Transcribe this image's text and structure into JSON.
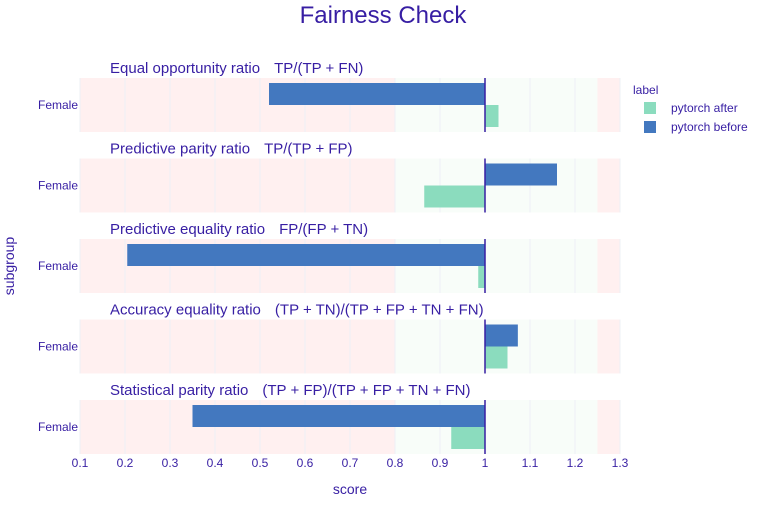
{
  "chart_data": {
    "type": "bar",
    "orientation": "horizontal",
    "title": "Fairness Check",
    "xlabel": "score",
    "ylabel": "subgroup",
    "xlim": [
      0.1,
      1.3
    ],
    "xticks": [
      "0.1",
      "0.2",
      "0.3",
      "0.4",
      "0.5",
      "0.6",
      "0.7",
      "0.8",
      "0.9",
      "1",
      "1.1",
      "1.2",
      "1.3"
    ],
    "xtick_values": [
      0.1,
      0.2,
      0.3,
      0.4,
      0.5,
      0.6,
      0.7,
      0.8,
      0.9,
      1.0,
      1.1,
      1.2,
      1.3
    ],
    "baseline": 1,
    "fair_range": [
      0.8,
      1.25
    ],
    "legend": {
      "title": "label",
      "placement": "top-right",
      "entries": [
        {
          "name": "pytorch after",
          "color": "#8bdcbe"
        },
        {
          "name": "pytorch before",
          "color": "#4378bf"
        }
      ]
    },
    "colors": {
      "title": "#371ea3",
      "unfair_zone": "#fff0f0",
      "fair_zone": "#f8fdf9",
      "baseline": "#371ea3",
      "grid": "#eef0f6"
    },
    "panels": [
      {
        "metric": "Equal opportunity ratio",
        "formula": "TP/(TP + FN)",
        "subgroup": "Female",
        "before": 0.52,
        "after": 1.03
      },
      {
        "metric": "Predictive parity ratio",
        "formula": "TP/(TP + FP)",
        "subgroup": "Female",
        "before": 1.16,
        "after": 0.865
      },
      {
        "metric": "Predictive equality ratio",
        "formula": "FP/(FP + TN)",
        "subgroup": "Female",
        "before": 0.205,
        "after": 0.985
      },
      {
        "metric": "Accuracy equality ratio",
        "formula": "(TP + TN)/(TP + FP + TN + FN)",
        "subgroup": "Female",
        "before": 1.073,
        "after": 1.05
      },
      {
        "metric": "Statistical parity ratio",
        "formula": "(TP + FP)/(TP + FP + TN + FN)",
        "subgroup": "Female",
        "before": 0.35,
        "after": 0.925
      }
    ]
  }
}
